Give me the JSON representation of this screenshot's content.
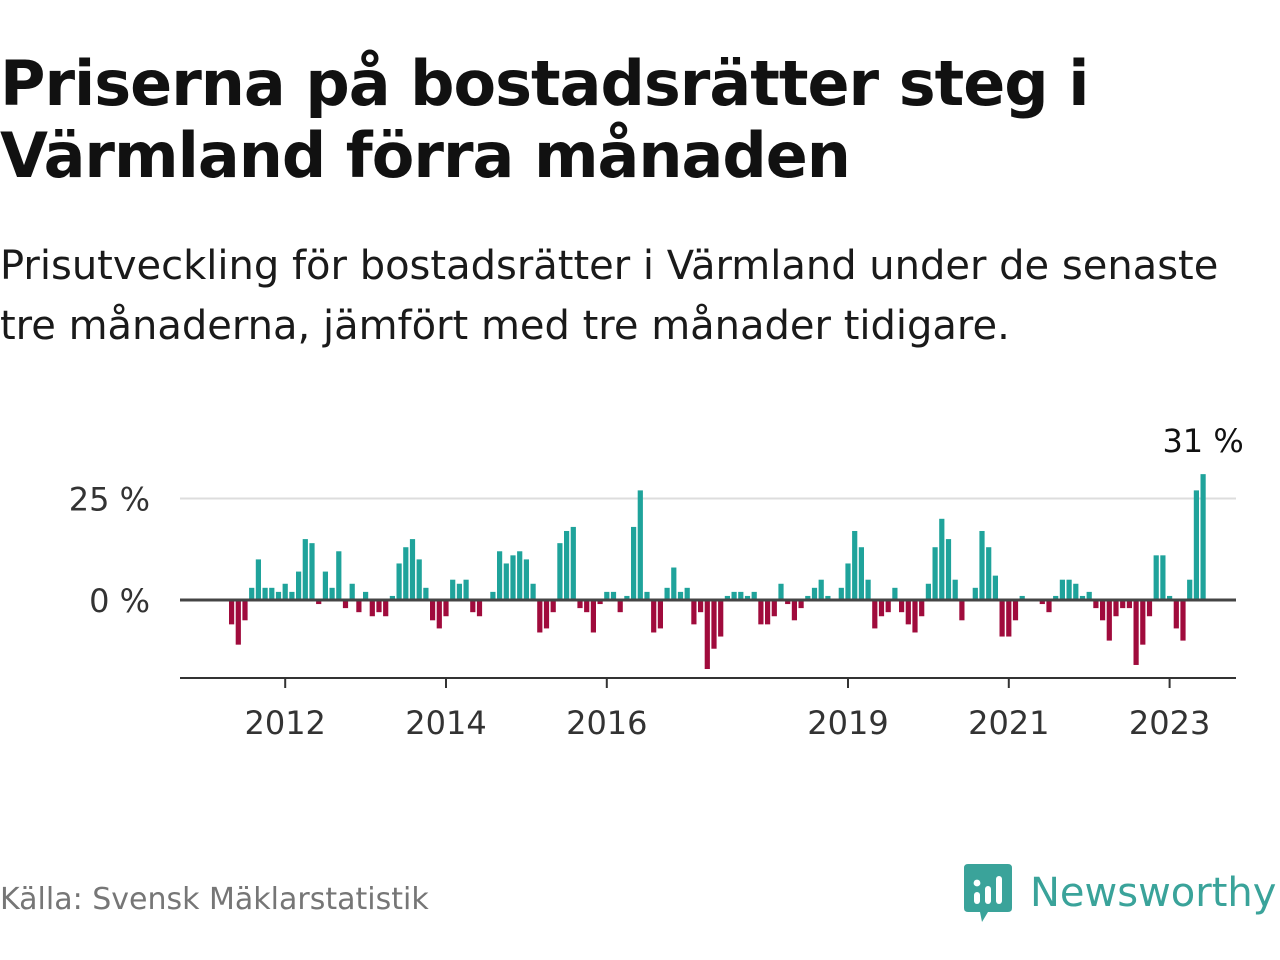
{
  "title": "Priserna på bostadsrätter steg i Värmland förra månaden",
  "subtitle": "Prisutveckling för bostadsrätter i Värmland under de senaste tre månaderna, jämfört med tre månader tidigare.",
  "source": "Källa: Svensk Mäklarstatistik",
  "brand": "Newsworthy",
  "colors": {
    "positive": "#1fa39b",
    "negative": "#a00b3c",
    "brand": "#3aa39a"
  },
  "chart_data": {
    "type": "bar",
    "x_start": "2011-05",
    "interval": "month",
    "ylim": [
      -20,
      31
    ],
    "yticks": [
      {
        "value": 0,
        "label": "0 %"
      },
      {
        "value": 25,
        "label": "25 %"
      }
    ],
    "xticks": [
      {
        "date": "2012-01",
        "label": "2012"
      },
      {
        "date": "2014-01",
        "label": "2014"
      },
      {
        "date": "2016-01",
        "label": "2016"
      },
      {
        "date": "2019-01",
        "label": "2019"
      },
      {
        "date": "2021-01",
        "label": "2021"
      },
      {
        "date": "2023-01",
        "label": "2023"
      }
    ],
    "annotation": "31 %",
    "values": [
      -6,
      -11,
      -5,
      3,
      10,
      3,
      3,
      2,
      4,
      2,
      7,
      15,
      14,
      -1,
      7,
      3,
      12,
      -2,
      4,
      -3,
      2,
      -4,
      -3,
      -4,
      1,
      9,
      13,
      15,
      10,
      3,
      -5,
      -7,
      -4,
      5,
      4,
      5,
      -3,
      -4,
      0,
      2,
      12,
      9,
      11,
      12,
      10,
      4,
      -8,
      -7,
      -3,
      14,
      17,
      18,
      -2,
      -3,
      -8,
      -1,
      2,
      2,
      -3,
      1,
      18,
      27,
      2,
      -8,
      -7,
      3,
      8,
      2,
      3,
      -6,
      -3,
      -17,
      -12,
      -9,
      1,
      2,
      2,
      1,
      2,
      -6,
      -6,
      -4,
      4,
      -1,
      -5,
      -2,
      1,
      3,
      5,
      1,
      0,
      3,
      9,
      17,
      13,
      5,
      -7,
      -4,
      -3,
      3,
      -3,
      -6,
      -8,
      -4,
      4,
      13,
      20,
      15,
      5,
      -5,
      0,
      3,
      17,
      13,
      6,
      -9,
      -9,
      -5,
      1,
      0,
      0,
      -1,
      -3,
      1,
      5,
      5,
      4,
      1,
      2,
      -2,
      -5,
      -10,
      -4,
      -2,
      -2,
      -16,
      -11,
      -4,
      11,
      11,
      1,
      -7,
      -10,
      5,
      27,
      31
    ]
  }
}
